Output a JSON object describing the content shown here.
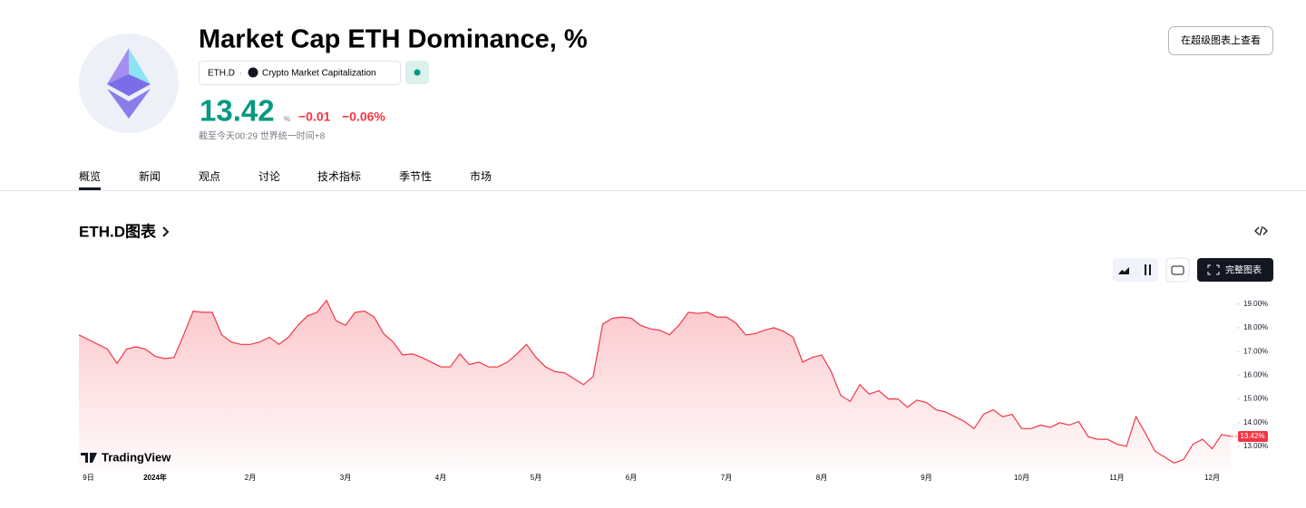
{
  "header": {
    "title": "Market Cap ETH Dominance, %",
    "symbol": "ETH.D",
    "source": "Crypto Market Capitalization",
    "price": "13.42",
    "unit": "%",
    "change": "−0.01",
    "change_percent": "−0.06%",
    "timestamp": "截至今天00:29 世界统一时间+8",
    "button": "在超级图表上查看"
  },
  "tabs": [
    "概览",
    "新闻",
    "观点",
    "讨论",
    "技术指标",
    "季节性",
    "市场"
  ],
  "section": {
    "title": "ETH.D图表",
    "full_chart_button": "完整图表"
  },
  "brand": "TradingView",
  "chart_data": {
    "type": "area",
    "color": "#f23645",
    "categories": [
      null,
      "9日",
      null,
      null,
      null,
      null,
      null,
      null,
      "2024年",
      null,
      null,
      null,
      null,
      null,
      null,
      null,
      null,
      null,
      "2月",
      null,
      null,
      null,
      null,
      null,
      null,
      null,
      null,
      null,
      "3月",
      null,
      null,
      null,
      null,
      null,
      null,
      null,
      null,
      null,
      "4月",
      null,
      null,
      null,
      null,
      null,
      null,
      null,
      null,
      null,
      "5月",
      null,
      null,
      null,
      null,
      null,
      null,
      null,
      null,
      null,
      "6月",
      null,
      null,
      null,
      null,
      null,
      null,
      null,
      null,
      null,
      "7月",
      null,
      null,
      null,
      null,
      null,
      null,
      null,
      null,
      null,
      "8月",
      null,
      null,
      null,
      null,
      null,
      null,
      null,
      null,
      null,
      null,
      "9月",
      null,
      null,
      null,
      null,
      null,
      null,
      null,
      null,
      null,
      "10月",
      null,
      null,
      null,
      null,
      null,
      null,
      null,
      null,
      null,
      "11月",
      null,
      null,
      null,
      null,
      null,
      null,
      null,
      null,
      null,
      "12月",
      null,
      null
    ],
    "values": [
      17.7,
      17.5,
      17.3,
      17.1,
      16.5,
      17.1,
      17.2,
      17.1,
      16.8,
      16.7,
      16.75,
      17.7,
      18.7,
      18.65,
      18.65,
      17.7,
      17.4,
      17.3,
      17.3,
      17.4,
      17.6,
      17.3,
      17.6,
      18.1,
      18.5,
      18.65,
      19.15,
      18.3,
      18.1,
      18.65,
      18.7,
      18.45,
      17.75,
      17.4,
      16.85,
      16.9,
      16.75,
      16.55,
      16.35,
      16.35,
      16.9,
      16.45,
      16.55,
      16.35,
      16.35,
      16.55,
      16.9,
      17.3,
      16.75,
      16.35,
      16.15,
      16.1,
      15.85,
      15.6,
      15.95,
      18.15,
      18.4,
      18.45,
      18.4,
      18.1,
      17.95,
      17.9,
      17.7,
      18.1,
      18.65,
      18.6,
      18.65,
      18.45,
      18.45,
      18.2,
      17.7,
      17.75,
      17.9,
      18.0,
      17.85,
      17.6,
      16.55,
      16.75,
      16.85,
      16.15,
      15.15,
      14.9,
      15.6,
      15.2,
      15.35,
      15.0,
      15.0,
      14.65,
      14.95,
      14.85,
      14.55,
      14.45,
      14.25,
      14.05,
      13.75,
      14.35,
      14.55,
      14.25,
      14.35,
      13.75,
      13.75,
      13.9,
      13.8,
      14.0,
      13.9,
      14.05,
      13.4,
      13.3,
      13.3,
      13.1,
      13.0,
      14.25,
      13.55,
      12.8,
      12.55,
      12.3,
      12.45,
      13.1,
      13.3,
      12.9,
      13.5,
      13.42
    ],
    "ylim": [
      12,
      19.6
    ],
    "yticks": [
      {
        "value": 13,
        "label": "13.00%"
      },
      {
        "value": 14,
        "label": "14.00%"
      },
      {
        "value": 15,
        "label": "15.00%"
      },
      {
        "value": 16,
        "label": "16.00%"
      },
      {
        "value": 17,
        "label": "17.00%"
      },
      {
        "value": 18,
        "label": "18.00%"
      },
      {
        "value": 19,
        "label": "19.00%"
      }
    ],
    "last_label": {
      "value": 13.42,
      "label": "13.42%"
    }
  }
}
